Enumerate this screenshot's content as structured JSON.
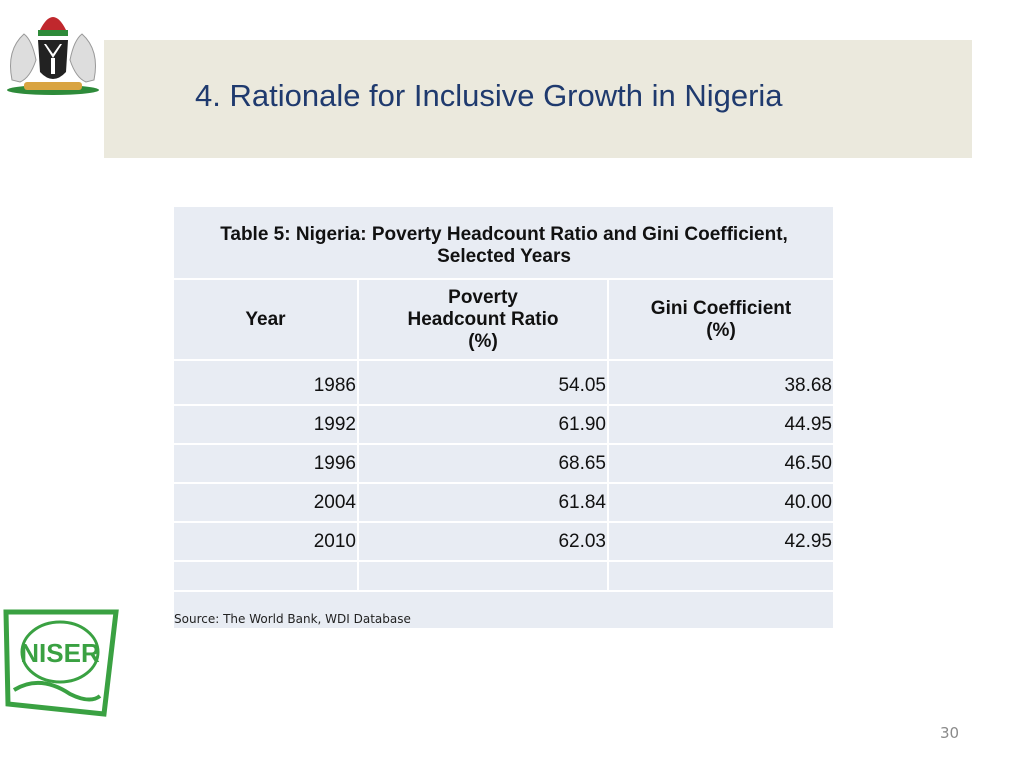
{
  "header": {
    "title": "4. Rationale for Inclusive Growth in Nigeria"
  },
  "table": {
    "caption": "Table 5: Nigeria: Poverty Headcount Ratio and Gini Coefficient, Selected Years",
    "columns": [
      "Year",
      "Poverty Headcount Ratio (%)",
      "Gini Coefficient (%)"
    ],
    "rows": [
      [
        "1986",
        "54.05",
        "38.68"
      ],
      [
        "1992",
        "61.90",
        "44.95"
      ],
      [
        "1996",
        "68.65",
        "46.50"
      ],
      [
        "2004",
        "61.84",
        "40.00"
      ],
      [
        "2010",
        "62.03",
        "42.95"
      ]
    ],
    "source": "Source: The World Bank, WDI Database"
  },
  "logos": {
    "niser": "NISER"
  },
  "page_number": "30"
}
